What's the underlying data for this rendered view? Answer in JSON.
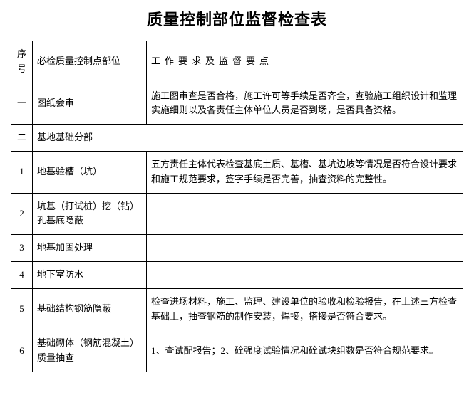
{
  "title": "质量控制部位监督检查表",
  "headers": {
    "seq": "序号",
    "part": "必检质量控制点部位",
    "requirement": "工作要求及监督要点"
  },
  "rows": [
    {
      "seq": "一",
      "part": "图纸会审",
      "req": "施工图审查是否合格，施工许可等手续是否齐全，查验施工组织设计和监理实施细则以及各责任主体单位人员是否到场，是否具备资格。",
      "type": "normal"
    },
    {
      "seq": "二",
      "part": "基地基础分部",
      "req": "",
      "type": "section"
    },
    {
      "seq": "1",
      "part": "地基验槽（坑）",
      "req": "五方责任主体代表检查基底土质、基槽、基坑边坡等情况是否符合设计要求和施工规范要求，签字手续是否完善，抽查资料的完整性。",
      "type": "normal"
    },
    {
      "seq": "2",
      "part": "坑基（打试桩）挖（钻）孔基底隐蔽",
      "req": "",
      "type": "normal"
    },
    {
      "seq": "3",
      "part": "地基加固处理",
      "req": "",
      "type": "normal"
    },
    {
      "seq": "4",
      "part": "地下室防水",
      "req": "",
      "type": "normal"
    },
    {
      "seq": "5",
      "part": "基础结构钢筋隐蔽",
      "req": "检查进场材料，施工、监理、建设单位的验收和检验报告，在上述三方检查基础上，抽查钢筋的制作安装，焊接，搭接是否符合要求。",
      "type": "normal"
    },
    {
      "seq": "6",
      "part": "基础砌体（钢筋混凝土）质量抽查",
      "req": "1、查试配报告；2、砼强度试验情况和砼试块组数是否符合规范要求。",
      "type": "normal"
    }
  ]
}
